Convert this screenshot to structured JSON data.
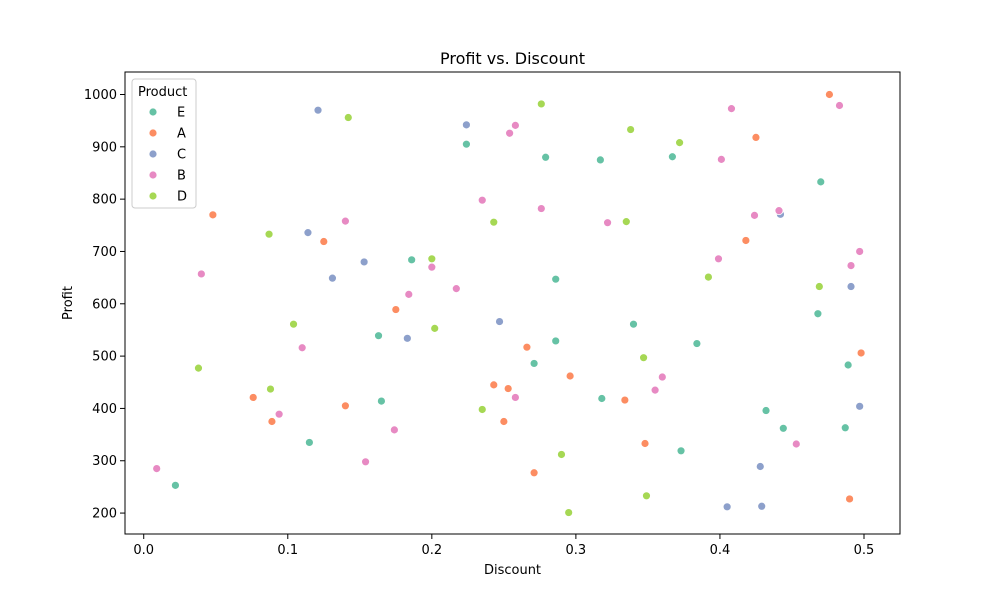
{
  "chart_data": {
    "type": "scatter",
    "title": "Profit vs. Discount",
    "xlabel": "Discount",
    "ylabel": "Profit",
    "xlim": [
      -0.013,
      0.525
    ],
    "ylim": [
      160,
      1043
    ],
    "xticks": [
      "0.0",
      "0.1",
      "0.2",
      "0.3",
      "0.4",
      "0.5"
    ],
    "yticks": [
      "200",
      "300",
      "400",
      "500",
      "600",
      "700",
      "800",
      "900",
      "1000"
    ],
    "grid": false,
    "legend": {
      "title": "Product",
      "placement": "top-left"
    },
    "series": [
      {
        "name": "E",
        "color": "#66c2a5",
        "points": [
          [
            0.022,
            253
          ],
          [
            0.115,
            335
          ],
          [
            0.163,
            539
          ],
          [
            0.165,
            414
          ],
          [
            0.186,
            684
          ],
          [
            0.224,
            905
          ],
          [
            0.271,
            486
          ],
          [
            0.279,
            880
          ],
          [
            0.286,
            647
          ],
          [
            0.286,
            529
          ],
          [
            0.317,
            875
          ],
          [
            0.318,
            419
          ],
          [
            0.34,
            561
          ],
          [
            0.367,
            881
          ],
          [
            0.373,
            319
          ],
          [
            0.384,
            524
          ],
          [
            0.432,
            396
          ],
          [
            0.444,
            362
          ],
          [
            0.468,
            581
          ],
          [
            0.47,
            833
          ],
          [
            0.487,
            363
          ],
          [
            0.489,
            483
          ]
        ]
      },
      {
        "name": "A",
        "color": "#fc8d62",
        "points": [
          [
            0.048,
            770
          ],
          [
            0.076,
            421
          ],
          [
            0.089,
            375
          ],
          [
            0.125,
            719
          ],
          [
            0.14,
            405
          ],
          [
            0.175,
            589
          ],
          [
            0.243,
            445
          ],
          [
            0.25,
            375
          ],
          [
            0.253,
            438
          ],
          [
            0.266,
            517
          ],
          [
            0.271,
            277
          ],
          [
            0.296,
            462
          ],
          [
            0.334,
            416
          ],
          [
            0.348,
            333
          ],
          [
            0.418,
            721
          ],
          [
            0.425,
            918
          ],
          [
            0.476,
            1000
          ],
          [
            0.49,
            227
          ],
          [
            0.498,
            506
          ]
        ]
      },
      {
        "name": "C",
        "color": "#8da0cb",
        "points": [
          [
            0.114,
            736
          ],
          [
            0.121,
            970
          ],
          [
            0.131,
            649
          ],
          [
            0.153,
            680
          ],
          [
            0.183,
            534
          ],
          [
            0.224,
            942
          ],
          [
            0.247,
            566
          ],
          [
            0.405,
            212
          ],
          [
            0.428,
            289
          ],
          [
            0.429,
            213
          ],
          [
            0.442,
            771
          ],
          [
            0.491,
            633
          ],
          [
            0.497,
            404
          ]
        ]
      },
      {
        "name": "B",
        "color": "#e78ac3",
        "points": [
          [
            0.009,
            285
          ],
          [
            0.04,
            657
          ],
          [
            0.094,
            389
          ],
          [
            0.11,
            516
          ],
          [
            0.14,
            758
          ],
          [
            0.154,
            298
          ],
          [
            0.174,
            359
          ],
          [
            0.184,
            618
          ],
          [
            0.2,
            670
          ],
          [
            0.217,
            629
          ],
          [
            0.235,
            798
          ],
          [
            0.254,
            926
          ],
          [
            0.258,
            941
          ],
          [
            0.258,
            421
          ],
          [
            0.276,
            782
          ],
          [
            0.322,
            755
          ],
          [
            0.355,
            435
          ],
          [
            0.36,
            460
          ],
          [
            0.399,
            686
          ],
          [
            0.401,
            876
          ],
          [
            0.408,
            973
          ],
          [
            0.424,
            769
          ],
          [
            0.441,
            778
          ],
          [
            0.453,
            332
          ],
          [
            0.483,
            979
          ],
          [
            0.491,
            673
          ],
          [
            0.497,
            700
          ]
        ]
      },
      {
        "name": "D",
        "color": "#a6d854",
        "points": [
          [
            0.038,
            477
          ],
          [
            0.087,
            733
          ],
          [
            0.088,
            437
          ],
          [
            0.104,
            561
          ],
          [
            0.142,
            956
          ],
          [
            0.2,
            686
          ],
          [
            0.202,
            553
          ],
          [
            0.235,
            398
          ],
          [
            0.243,
            756
          ],
          [
            0.276,
            982
          ],
          [
            0.29,
            312
          ],
          [
            0.295,
            201
          ],
          [
            0.335,
            757
          ],
          [
            0.338,
            933
          ],
          [
            0.347,
            497
          ],
          [
            0.349,
            233
          ],
          [
            0.372,
            908
          ],
          [
            0.392,
            651
          ],
          [
            0.469,
            633
          ]
        ]
      }
    ]
  }
}
